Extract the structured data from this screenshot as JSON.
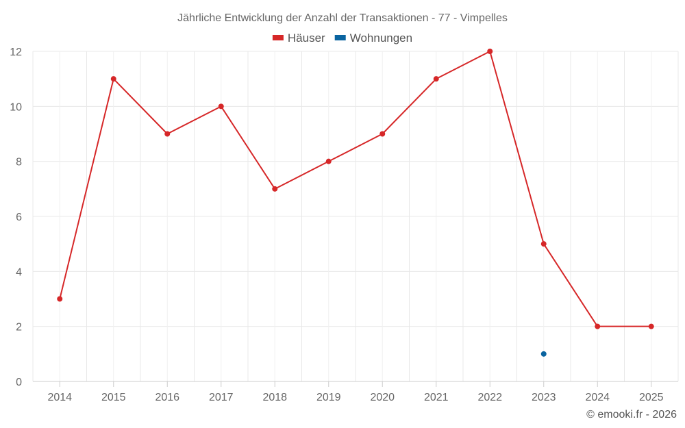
{
  "chart_data": {
    "type": "line",
    "title": "Jährliche Entwicklung der Anzahl der Transaktionen - 77 - Vimpelles",
    "categories": [
      "2014",
      "2015",
      "2016",
      "2017",
      "2018",
      "2019",
      "2020",
      "2021",
      "2022",
      "2023",
      "2024",
      "2025"
    ],
    "series": [
      {
        "name": "Häuser",
        "color": "#d62728",
        "values": [
          3,
          11,
          9,
          10,
          7,
          8,
          9,
          11,
          12,
          5,
          2,
          2
        ]
      },
      {
        "name": "Wohnungen",
        "color": "#0a64a0",
        "values": [
          null,
          null,
          null,
          null,
          null,
          null,
          null,
          null,
          null,
          1,
          null,
          null
        ]
      }
    ],
    "yticks": [
      "0",
      "2",
      "4",
      "6",
      "8",
      "10",
      "12"
    ],
    "ylim": [
      0,
      12
    ],
    "grid": true,
    "legend": "top-center",
    "xlabel": "",
    "ylabel": ""
  },
  "credit": "© emooki.fr - 2026"
}
